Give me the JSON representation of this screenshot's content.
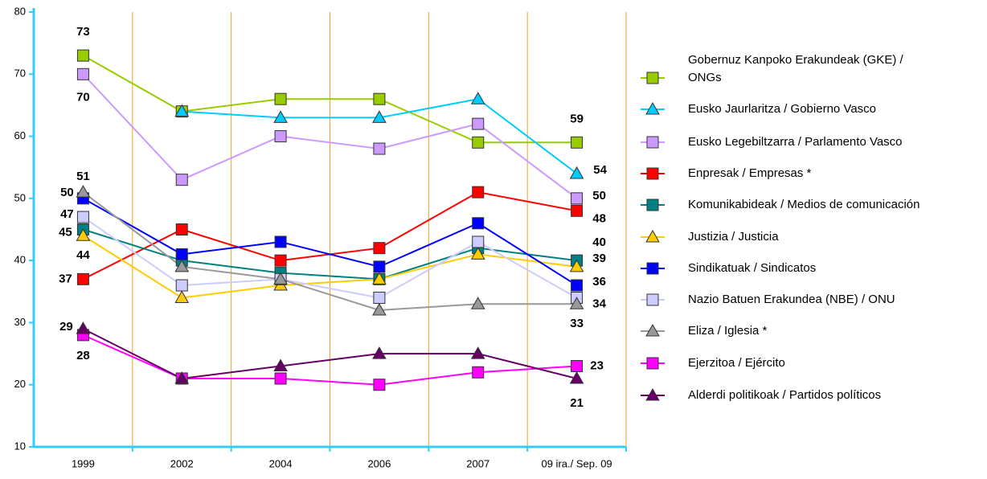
{
  "chart_data": {
    "type": "line",
    "categories": [
      "1999",
      "2002",
      "2004",
      "2006",
      "2007",
      "09 ira./ Sep. 09"
    ],
    "ylim": [
      10,
      80
    ],
    "yticks": [
      10,
      20,
      30,
      40,
      50,
      60,
      70,
      80
    ],
    "label_indices": [
      0,
      5
    ],
    "series": [
      {
        "name": "Gobernuz Kanpoko Erakundeak (GKE) / ONGs",
        "color": "#99cc00",
        "marker": "square",
        "values": [
          73,
          64,
          66,
          66,
          59,
          59
        ]
      },
      {
        "name": "Eusko Jaurlaritza / Gobierno Vasco",
        "color": "#00ccff",
        "marker": "triangle",
        "values": [
          null,
          64,
          63,
          63,
          66,
          54
        ]
      },
      {
        "name": "Eusko Legebiltzarra / Parlamento Vasco",
        "color": "#cc99ff",
        "marker": "square",
        "values": [
          70,
          53,
          60,
          58,
          62,
          50
        ]
      },
      {
        "name": "Enpresak / Empresas *",
        "color": "#ff0000",
        "marker": "square",
        "values": [
          37,
          45,
          40,
          42,
          51,
          48
        ]
      },
      {
        "name": "Komunikabideak / Medios de comunicación",
        "color": "#008080",
        "marker": "square",
        "values": [
          45,
          40,
          38,
          37,
          42,
          40
        ]
      },
      {
        "name": "Justizia / Justicia",
        "color": "#ffcc00",
        "marker": "triangle",
        "values": [
          44,
          34,
          36,
          37,
          41,
          39
        ]
      },
      {
        "name": "Sindikatuak / Sindicatos",
        "color": "#0000ff",
        "marker": "square",
        "values": [
          50,
          41,
          43,
          39,
          46,
          36
        ]
      },
      {
        "name": "Nazio Batuen Erakundea (NBE) / ONU",
        "color": "#ccccff",
        "marker": "square",
        "values": [
          47,
          36,
          37,
          34,
          43,
          34
        ]
      },
      {
        "name": "Eliza / Iglesia *",
        "color": "#999999",
        "marker": "triangle",
        "values": [
          51,
          39,
          37,
          32,
          33,
          33
        ]
      },
      {
        "name": "Ejerzitoa / Ejército",
        "color": "#ff00ff",
        "marker": "square",
        "values": [
          28,
          21,
          21,
          20,
          22,
          23
        ]
      },
      {
        "name": "Alderdi politikoak / Partidos políticos",
        "color": "#660066",
        "marker": "triangle",
        "values": [
          29,
          21,
          23,
          25,
          25,
          21
        ]
      }
    ]
  }
}
